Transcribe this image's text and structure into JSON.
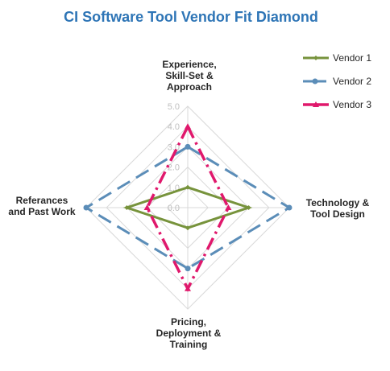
{
  "chart_data": {
    "type": "radar",
    "title": "CI Software Tool Vendor Fit Diamond",
    "axes": [
      "Experience, Skill-Set & Approach",
      "Technology  & Tool Design",
      "Pricing, Deployment & Training",
      "Referances and Past Work"
    ],
    "rlim": [
      0,
      5
    ],
    "ticks": [
      "0.0",
      "1.0",
      "2.0",
      "3.0",
      "4.0",
      "5.0"
    ],
    "grid": true,
    "legend_position": "top-right",
    "series": [
      {
        "name": "Vendor 1",
        "values": [
          1,
          3,
          1,
          3
        ],
        "color": "#77933c",
        "style": "solid"
      },
      {
        "name": "Vendor 2",
        "values": [
          3,
          5,
          3,
          5
        ],
        "color": "#5b8db8",
        "style": "long-dash"
      },
      {
        "name": "Vendor 3",
        "values": [
          4,
          2,
          4,
          2
        ],
        "color": "#e0186c",
        "style": "dash-dot"
      }
    ]
  }
}
